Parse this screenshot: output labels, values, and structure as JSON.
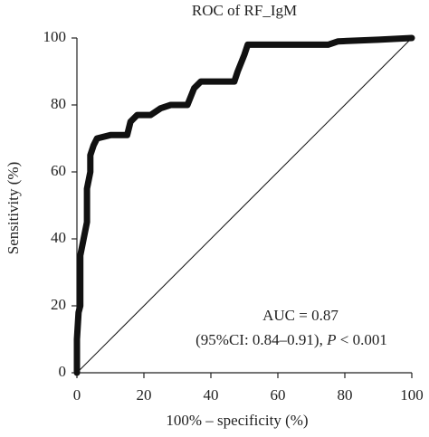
{
  "chart_data": {
    "type": "line",
    "title": "ROC of RF_IgM",
    "x_label": "100% – specificity (%)",
    "y_label": "Sensitivity (%)",
    "auc_text": "AUC = 0.87",
    "ci_text": {
      "before": "(95%CI: 0.84–0.91), ",
      "italic": "P",
      "after": " < 0.001"
    },
    "xlim": [
      0,
      100
    ],
    "ylim": [
      0,
      100
    ],
    "xticks": [
      0,
      20,
      40,
      60,
      80,
      100
    ],
    "yticks": [
      0,
      20,
      40,
      60,
      80,
      100
    ],
    "series": [
      {
        "color": "#111111",
        "width": 7,
        "x": [
          0,
          0,
          0.5,
          1,
          1,
          2,
          3,
          3,
          4,
          4,
          5,
          6,
          10,
          15,
          16,
          18,
          22,
          25,
          28,
          33,
          35,
          37,
          47,
          48,
          50,
          51,
          60,
          75,
          78,
          90,
          100
        ],
        "values": [
          0,
          10,
          18,
          20,
          35,
          40,
          45,
          55,
          60,
          65,
          68,
          70,
          71,
          71,
          75,
          77,
          77,
          79,
          80,
          80,
          85,
          87,
          87,
          90,
          95,
          98,
          98,
          98,
          99,
          99.5,
          100
        ]
      },
      {
        "color": "#111111",
        "width": 1,
        "x": [
          0,
          100
        ],
        "values": [
          0,
          100
        ]
      }
    ]
  }
}
